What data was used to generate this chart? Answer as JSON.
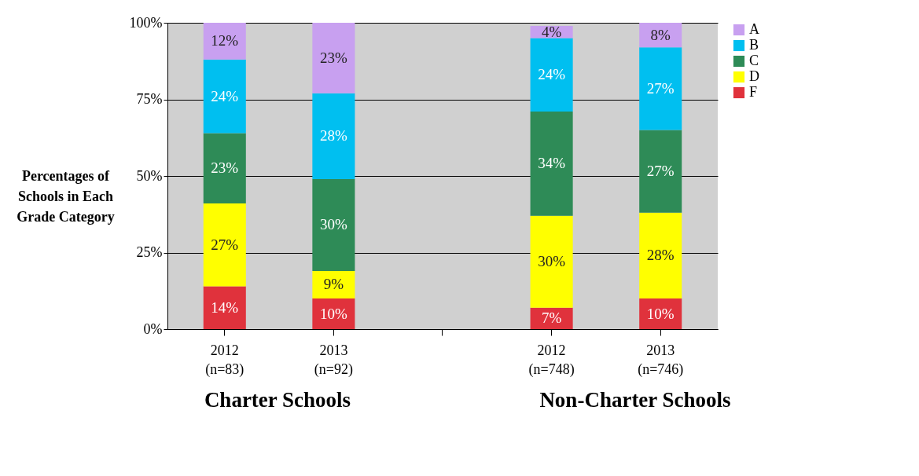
{
  "chart_data": {
    "type": "bar",
    "stacked": true,
    "ylabel": "Percentages of Schools in Each Grade Category",
    "categories": [
      "2012\n(n=83)",
      "2013\n(n=92)",
      null,
      "2012\n(n=748)",
      "2013\n(n=746)"
    ],
    "series": [
      {
        "name": "F",
        "color": "#e0323c",
        "values": [
          14,
          10,
          null,
          7,
          10
        ],
        "value_labels": [
          "14%",
          "10%",
          null,
          "7%",
          "10%"
        ]
      },
      {
        "name": "D",
        "color": "#ffff00",
        "values": [
          27,
          9,
          null,
          30,
          28
        ],
        "value_labels": [
          "27%",
          "9%",
          null,
          "30%",
          "28%"
        ]
      },
      {
        "name": "C",
        "color": "#2e8b57",
        "values": [
          23,
          30,
          null,
          34,
          27
        ],
        "value_labels": [
          "23%",
          "30%",
          null,
          "34%",
          "27%"
        ]
      },
      {
        "name": "B",
        "color": "#00bff0",
        "values": [
          24,
          28,
          null,
          24,
          27
        ],
        "value_labels": [
          "24%",
          "28%",
          null,
          "24%",
          "27%"
        ]
      },
      {
        "name": "A",
        "color": "#c8a0f0",
        "values": [
          12,
          23,
          null,
          4,
          8
        ],
        "value_labels": [
          "12%",
          "23%",
          null,
          "4%",
          "8%"
        ]
      }
    ],
    "ylim": [
      0,
      100
    ],
    "yticks": [
      {
        "value": 0,
        "label": "0%"
      },
      {
        "value": 25,
        "label": "25%"
      },
      {
        "value": 50,
        "label": "50%"
      },
      {
        "value": 75,
        "label": "75%"
      },
      {
        "value": 100,
        "label": "100%"
      }
    ],
    "grid": "y",
    "legend": "right",
    "annotations": [
      "Charter Schools",
      "Non-Charter Schools"
    ]
  }
}
